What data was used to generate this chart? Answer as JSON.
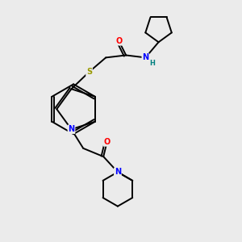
{
  "background_color": "#ebebeb",
  "line_color": "#000000",
  "atom_colors": {
    "O": "#ff0000",
    "N": "#0000ff",
    "S": "#999900",
    "H": "#008080"
  },
  "figsize": [
    3.0,
    3.0
  ],
  "dpi": 100
}
